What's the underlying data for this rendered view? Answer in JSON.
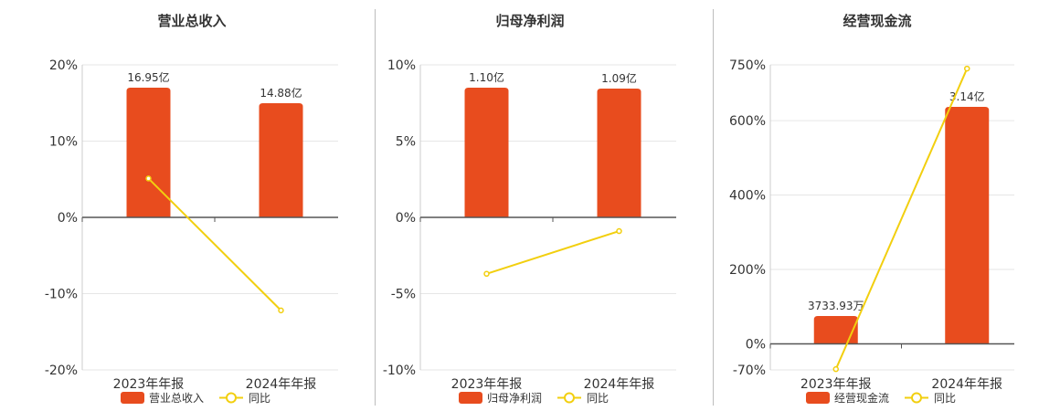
{
  "colors": {
    "bar": "#e84c1e",
    "line": "#f2cf0f",
    "grid": "#e6e6e6",
    "axis": "#555555"
  },
  "chart_data": [
    {
      "type": "bar",
      "title": "营业总收入",
      "categories": [
        "2023年年报",
        "2024年年报"
      ],
      "ylim": [
        -20,
        20
      ],
      "yticks": [
        20,
        10,
        0,
        -10,
        -20
      ],
      "ytick_labels": [
        "20%",
        "10%",
        "0%",
        "-10%",
        "-20%"
      ],
      "grid": true,
      "legend": "bottom",
      "series": [
        {
          "name": "营业总收入",
          "kind": "bar",
          "values": [
            16.95,
            14.88
          ],
          "labels": [
            "16.95亿",
            "14.88亿"
          ]
        },
        {
          "name": "同比",
          "kind": "line",
          "values": [
            5.1,
            -12.2
          ]
        }
      ]
    },
    {
      "type": "bar",
      "title": "归母净利润",
      "categories": [
        "2023年年报",
        "2024年年报"
      ],
      "ylim": [
        -10,
        10
      ],
      "yticks": [
        10,
        5,
        0,
        -5,
        -10
      ],
      "ytick_labels": [
        "10%",
        "5%",
        "0%",
        "-5%",
        "-10%"
      ],
      "grid": true,
      "legend": "bottom",
      "series": [
        {
          "name": "归母净利润",
          "kind": "bar",
          "values": [
            1.1,
            1.09
          ],
          "labels": [
            "1.10亿",
            "1.09亿"
          ]
        },
        {
          "name": "同比",
          "kind": "line",
          "values": [
            -3.7,
            -0.9
          ]
        }
      ]
    },
    {
      "type": "bar",
      "title": "经营现金流",
      "categories": [
        "2023年年报",
        "2024年年报"
      ],
      "ylim": [
        -70,
        750
      ],
      "yticks": [
        750,
        600,
        400,
        200,
        0,
        -70
      ],
      "ytick_labels": [
        "750%",
        "600%",
        "400%",
        "200%",
        "0%",
        "-70%"
      ],
      "grid": true,
      "legend": "bottom",
      "series": [
        {
          "name": "经营现金流",
          "kind": "bar",
          "values": [
            0.373393,
            3.14
          ],
          "labels": [
            "3733.93万",
            "3.14亿"
          ]
        },
        {
          "name": "同比",
          "kind": "line",
          "values": [
            -68,
            740
          ]
        }
      ]
    }
  ]
}
